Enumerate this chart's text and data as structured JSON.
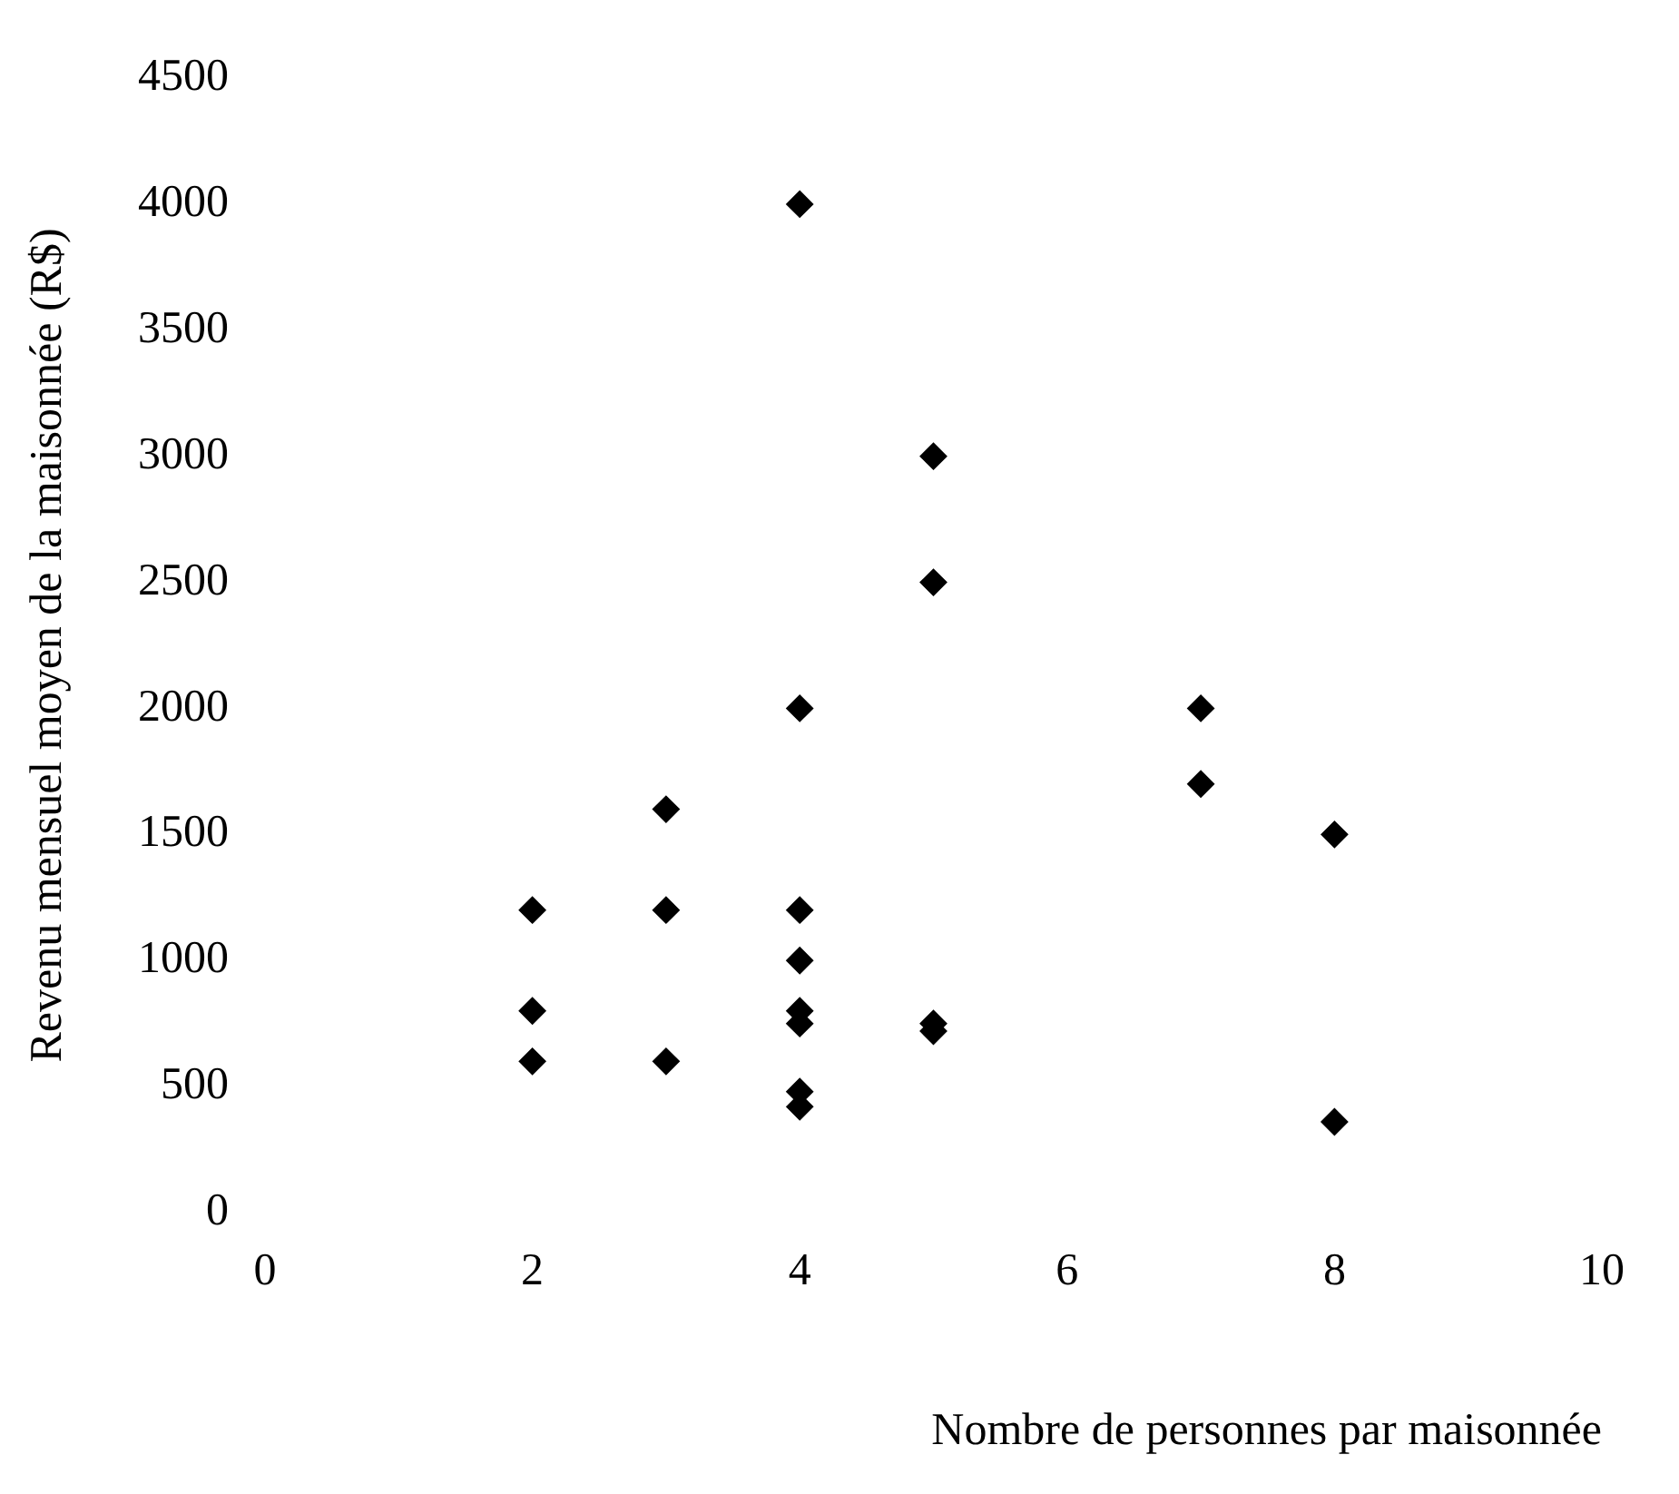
{
  "chart_data": {
    "type": "scatter",
    "xlabel": "Nombre de personnes par maisonnée",
    "ylabel": "Revenu mensuel moyen de la maisonnée (R$)",
    "x": [
      2,
      2,
      2,
      3,
      3,
      3,
      4,
      4,
      4,
      4,
      4,
      4,
      4,
      4,
      5,
      5,
      5,
      5,
      7,
      7,
      8,
      8
    ],
    "series": [
      {
        "color": "#000000",
        "values": [
          1200,
          800,
          600,
          1600,
          1200,
          600,
          4000,
          2000,
          1200,
          1000,
          800,
          750,
          480,
          420,
          3000,
          2500,
          750,
          720,
          2000,
          1700,
          1500,
          360
        ]
      }
    ],
    "xlim": [
      0,
      10
    ],
    "xticks": [
      0,
      2,
      4,
      6,
      8,
      10
    ],
    "ylim": [
      0,
      4500
    ],
    "yticks": [
      0,
      500,
      1000,
      1500,
      2000,
      2500,
      3000,
      3500,
      4000,
      4500
    ],
    "grid": false,
    "legend": false,
    "marker": "diamond"
  }
}
